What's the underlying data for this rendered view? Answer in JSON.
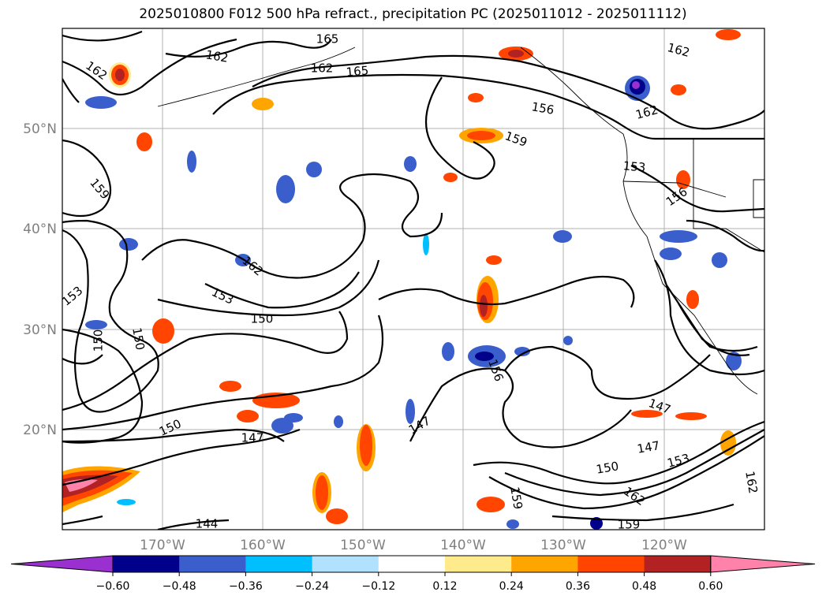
{
  "title": "2025010800 F012 500 hPa refract., precipitation PC (2025011012 - 2025011112)",
  "map": {
    "lat_labels": [
      "50°N",
      "40°N",
      "30°N",
      "20°N"
    ],
    "lon_labels": [
      "170°W",
      "160°W",
      "150°W",
      "140°W",
      "130°W",
      "120°W"
    ],
    "contour_labels": [
      "165",
      "162",
      "162",
      "162",
      "165",
      "162",
      "156",
      "162",
      "159",
      "153",
      "156",
      "159",
      "162",
      "153",
      "150",
      "153",
      "150",
      "156",
      "147",
      "147",
      "150",
      "147",
      "147",
      "150",
      "153",
      "162",
      "159",
      "159",
      "144",
      "162",
      "150"
    ]
  },
  "colorbar": {
    "ticks": [
      "−0.60",
      "−0.48",
      "−0.36",
      "−0.24",
      "−0.12",
      "0.12",
      "0.24",
      "0.36",
      "0.48",
      "0.60"
    ],
    "colors": [
      "#9b30d0",
      "#00008b",
      "#3a5fcd",
      "#00bfff",
      "#b0e2ff",
      "#ffffff",
      "#ffeb8c",
      "#ffa500",
      "#ff4500",
      "#b22222",
      "#ff82ab"
    ]
  }
}
